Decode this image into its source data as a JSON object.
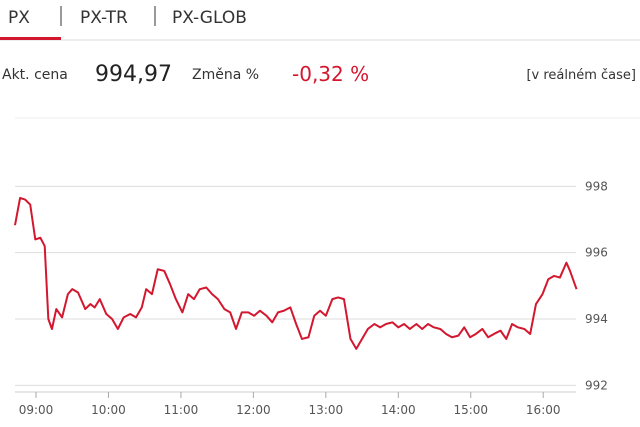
{
  "tabs": [
    "PX",
    "PX-TR",
    "PX-GLOB"
  ],
  "quote": {
    "price_label": "Akt. cena",
    "price": "994,97",
    "change_label": "Změna %",
    "change": "-0,32 %",
    "realtime": "[v reálném čase]"
  },
  "chart_data": {
    "type": "line",
    "color": "#d3172f",
    "grid": true,
    "x": [
      8.71,
      8.78,
      8.85,
      8.92,
      8.99,
      9.06,
      9.12,
      9.17,
      9.22,
      9.28,
      9.36,
      9.44,
      9.5,
      9.58,
      9.68,
      9.75,
      9.81,
      9.88,
      9.97,
      10.05,
      10.13,
      10.21,
      10.3,
      10.38,
      10.46,
      10.52,
      10.6,
      10.68,
      10.77,
      10.85,
      10.93,
      11.02,
      11.1,
      11.18,
      11.26,
      11.35,
      11.43,
      11.51,
      11.6,
      11.68,
      11.76,
      11.84,
      11.93,
      12.01,
      12.09,
      12.18,
      12.26,
      12.34,
      12.42,
      12.51,
      12.59,
      12.67,
      12.76,
      12.84,
      12.92,
      13.0,
      13.09,
      13.17,
      13.25,
      13.34,
      13.42,
      13.5,
      13.58,
      13.67,
      13.75,
      13.83,
      13.92,
      14.0,
      14.08,
      14.16,
      14.25,
      14.33,
      14.41,
      14.49,
      14.58,
      14.66,
      14.74,
      14.83,
      14.91,
      14.99,
      15.07,
      15.16,
      15.24,
      15.32,
      15.41,
      15.49,
      15.57,
      15.65,
      15.74,
      15.82,
      15.9,
      15.99,
      16.07,
      16.15,
      16.23,
      16.32,
      16.37,
      16.46
    ],
    "values": [
      996.83,
      997.65,
      997.6,
      997.45,
      996.4,
      996.45,
      996.2,
      994.0,
      993.7,
      994.3,
      994.05,
      994.75,
      994.9,
      994.8,
      994.3,
      994.45,
      994.35,
      994.6,
      994.15,
      994.0,
      993.7,
      994.05,
      994.15,
      994.05,
      994.35,
      994.9,
      994.75,
      995.5,
      995.45,
      995.05,
      994.6,
      994.2,
      994.75,
      994.6,
      994.9,
      994.95,
      994.75,
      994.6,
      994.3,
      994.2,
      993.7,
      994.2,
      994.2,
      994.1,
      994.25,
      994.1,
      993.9,
      994.2,
      994.25,
      994.35,
      993.85,
      993.4,
      993.45,
      994.1,
      994.25,
      994.1,
      994.6,
      994.65,
      994.6,
      993.4,
      993.1,
      993.4,
      993.7,
      993.85,
      993.75,
      993.85,
      993.9,
      993.75,
      993.85,
      993.7,
      993.85,
      993.7,
      993.85,
      993.75,
      993.7,
      993.55,
      993.45,
      993.5,
      993.75,
      993.45,
      993.55,
      993.7,
      993.45,
      993.55,
      993.65,
      993.4,
      993.85,
      993.75,
      993.7,
      993.55,
      994.45,
      994.75,
      995.2,
      995.3,
      995.25,
      995.7,
      995.45,
      994.9
    ],
    "xlim": [
      8.71,
      16.48
    ],
    "xticks": [
      {
        "value": 9,
        "label": "09:00"
      },
      {
        "value": 10,
        "label": "10:00"
      },
      {
        "value": 11,
        "label": "11:00"
      },
      {
        "value": 12,
        "label": "12:00"
      },
      {
        "value": 13,
        "label": "13:00"
      },
      {
        "value": 14,
        "label": "14:00"
      },
      {
        "value": 15,
        "label": "15:00"
      },
      {
        "value": 16,
        "label": "16:00"
      }
    ],
    "ylim": [
      991.8,
      1000
    ],
    "yticks": [
      992,
      994,
      996,
      998
    ]
  }
}
